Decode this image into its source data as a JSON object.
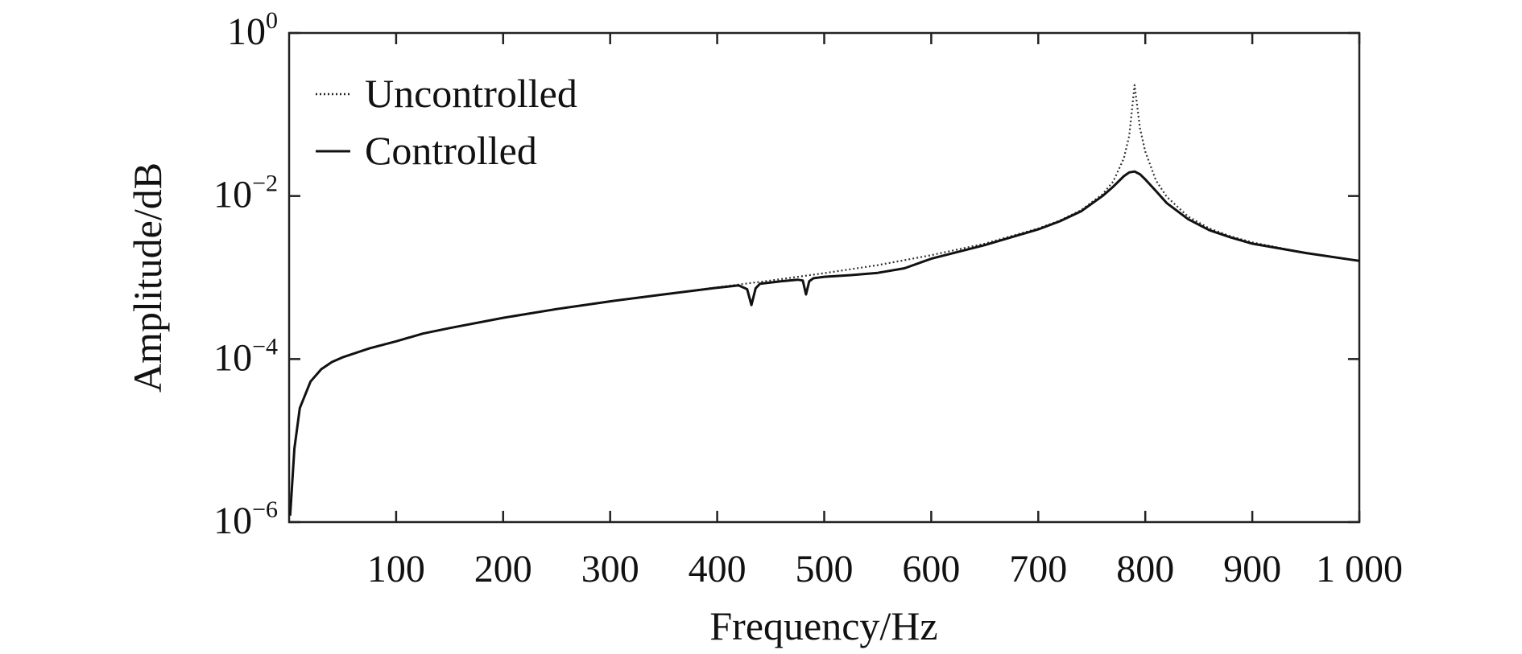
{
  "chart_data": {
    "type": "line",
    "title": "",
    "xlabel": "Frequency/Hz",
    "ylabel": "Amplitude/dB",
    "xlim": [
      0,
      1000
    ],
    "ylim": [
      1e-06,
      1
    ],
    "y_scale": "log",
    "grid": false,
    "legend_position": "top-left",
    "x_ticks": [
      100,
      200,
      300,
      400,
      500,
      600,
      700,
      800,
      900,
      1000
    ],
    "x_tick_labels": [
      "100",
      "200",
      "300",
      "400",
      "500",
      "600",
      "700",
      "800",
      "900",
      "1 000"
    ],
    "y_ticks": [
      {
        "value": 1e-06,
        "base": "10",
        "exp": "−6"
      },
      {
        "value": 0.0001,
        "base": "10",
        "exp": "−4"
      },
      {
        "value": 0.01,
        "base": "10",
        "exp": "−2"
      },
      {
        "value": 1,
        "base": "10",
        "exp": "0"
      }
    ],
    "series": [
      {
        "name": "Uncontrolled",
        "style": "dotted",
        "x": [
          1,
          5,
          10,
          20,
          30,
          40,
          50,
          75,
          100,
          125,
          150,
          200,
          250,
          300,
          350,
          400,
          450,
          500,
          550,
          600,
          650,
          700,
          720,
          740,
          760,
          770,
          780,
          785,
          790,
          795,
          800,
          810,
          820,
          840,
          860,
          880,
          900,
          950,
          1000
        ],
        "y": [
          1.2e-06,
          8e-06,
          2.5e-05,
          5.3e-05,
          7.5e-05,
          9.2e-05,
          0.000105,
          0.000135,
          0.000165,
          0.000205,
          0.00024,
          0.00032,
          0.00041,
          0.00051,
          0.00062,
          0.00076,
          0.00092,
          0.00113,
          0.00142,
          0.00188,
          0.0026,
          0.004,
          0.005,
          0.0067,
          0.0105,
          0.015,
          0.029,
          0.055,
          0.23,
          0.068,
          0.035,
          0.0155,
          0.0098,
          0.0056,
          0.004,
          0.0032,
          0.0027,
          0.002,
          0.0016
        ]
      },
      {
        "name": "Controlled",
        "style": "solid",
        "x": [
          1,
          5,
          10,
          20,
          30,
          40,
          50,
          75,
          100,
          125,
          150,
          200,
          250,
          300,
          350,
          400,
          420,
          428,
          432,
          436,
          440,
          460,
          475,
          480,
          483,
          486,
          490,
          500,
          525,
          550,
          575,
          600,
          650,
          700,
          720,
          740,
          760,
          770,
          780,
          785,
          790,
          795,
          800,
          810,
          820,
          840,
          860,
          880,
          900,
          950,
          1000
        ],
        "y": [
          1.2e-06,
          8e-06,
          2.5e-05,
          5.3e-05,
          7.5e-05,
          9.2e-05,
          0.000105,
          0.000135,
          0.000165,
          0.000205,
          0.00024,
          0.00032,
          0.00041,
          0.00051,
          0.00062,
          0.00075,
          0.0008,
          0.00072,
          0.00046,
          0.00074,
          0.00084,
          0.0009,
          0.00094,
          0.00092,
          0.00062,
          0.0009,
          0.00098,
          0.00102,
          0.00107,
          0.00114,
          0.0013,
          0.0017,
          0.0025,
          0.0039,
          0.0049,
          0.0065,
          0.01,
          0.013,
          0.0175,
          0.0195,
          0.02,
          0.0185,
          0.016,
          0.0115,
          0.0082,
          0.0052,
          0.0038,
          0.0031,
          0.0026,
          0.002,
          0.0016
        ]
      }
    ]
  }
}
